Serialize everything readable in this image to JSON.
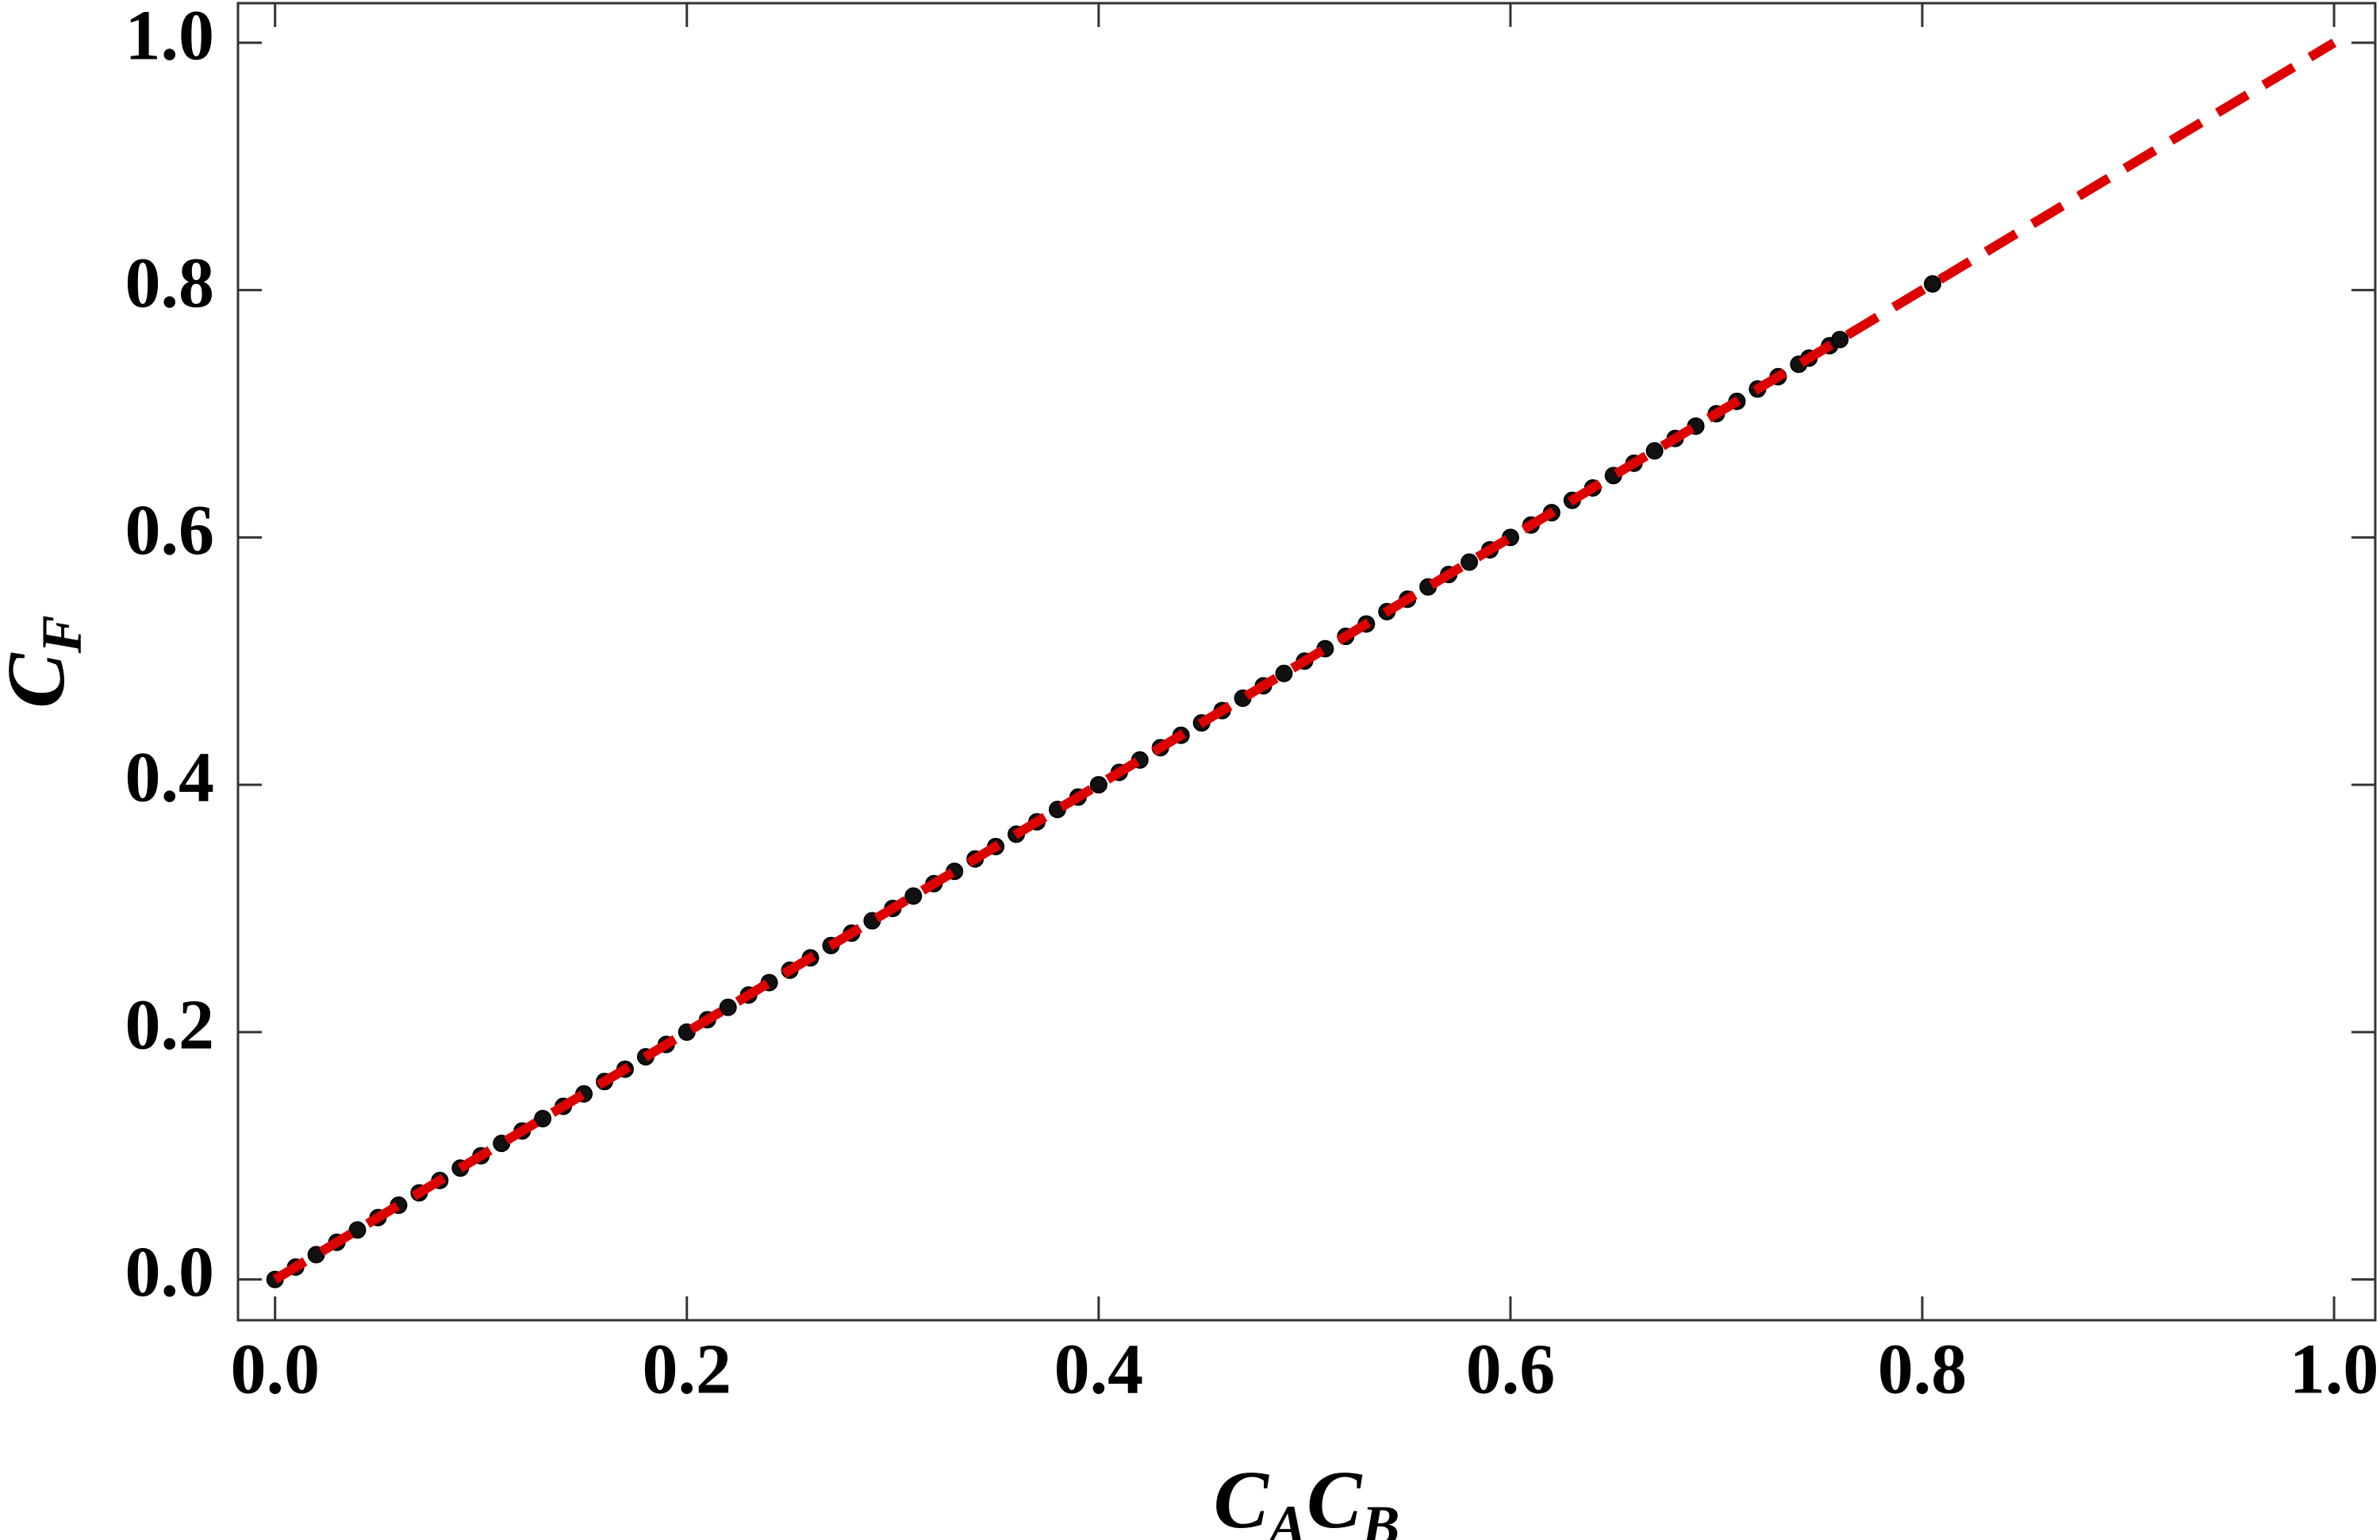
{
  "chart_data": {
    "type": "scatter",
    "xlabel": "CACB",
    "ylabel": "CF",
    "xlim": [
      -0.018,
      1.02
    ],
    "ylim": [
      -0.033,
      1.032
    ],
    "xticks": [
      {
        "value": 0,
        "label": "0.0"
      },
      {
        "value": 0.2,
        "label": "0.2"
      },
      {
        "value": 0.4,
        "label": "0.4"
      },
      {
        "value": 0.6,
        "label": "0.6"
      },
      {
        "value": 0.8,
        "label": "0.8"
      },
      {
        "value": 1,
        "label": "1.0"
      }
    ],
    "yticks": [
      {
        "value": 0,
        "label": "0.0"
      },
      {
        "value": 0.2,
        "label": "0.2"
      },
      {
        "value": 0.4,
        "label": "0.4"
      },
      {
        "value": 0.6,
        "label": "0.6"
      },
      {
        "value": 0.8,
        "label": "0.8"
      },
      {
        "value": 1,
        "label": "1.0"
      }
    ],
    "series": [
      {
        "kind": "points",
        "color": "#111111",
        "x": [
          0,
          0.01,
          0.02,
          0.03,
          0.04,
          0.05,
          0.06,
          0.07,
          0.08,
          0.09,
          0.1,
          0.11,
          0.12,
          0.13,
          0.14,
          0.15,
          0.16,
          0.17,
          0.18,
          0.19,
          0.2,
          0.21,
          0.22,
          0.23,
          0.24,
          0.25,
          0.26,
          0.27,
          0.28,
          0.29,
          0.3,
          0.31,
          0.32,
          0.33,
          0.34,
          0.35,
          0.36,
          0.37,
          0.38,
          0.39,
          0.4,
          0.41,
          0.42,
          0.43,
          0.44,
          0.45,
          0.46,
          0.47,
          0.48,
          0.49,
          0.5,
          0.51,
          0.52,
          0.53,
          0.54,
          0.55,
          0.56,
          0.57,
          0.58,
          0.59,
          0.6,
          0.61,
          0.62,
          0.63,
          0.64,
          0.65,
          0.66,
          0.67,
          0.68,
          0.69,
          0.7,
          0.71,
          0.72,
          0.73,
          0.74,
          0.745,
          0.755,
          0.76,
          0.805
        ],
        "values": [
          0,
          0.01,
          0.02,
          0.03,
          0.04,
          0.05,
          0.06,
          0.07,
          0.08,
          0.09,
          0.1,
          0.11,
          0.12,
          0.13,
          0.14,
          0.15,
          0.16,
          0.17,
          0.18,
          0.19,
          0.2,
          0.21,
          0.22,
          0.23,
          0.24,
          0.25,
          0.26,
          0.27,
          0.28,
          0.29,
          0.3,
          0.31,
          0.32,
          0.33,
          0.34,
          0.35,
          0.36,
          0.37,
          0.38,
          0.39,
          0.4,
          0.41,
          0.42,
          0.43,
          0.44,
          0.45,
          0.46,
          0.47,
          0.48,
          0.49,
          0.5,
          0.51,
          0.52,
          0.53,
          0.54,
          0.55,
          0.56,
          0.57,
          0.58,
          0.59,
          0.6,
          0.61,
          0.62,
          0.63,
          0.64,
          0.65,
          0.66,
          0.67,
          0.68,
          0.69,
          0.7,
          0.71,
          0.72,
          0.73,
          0.74,
          0.745,
          0.755,
          0.76,
          0.805
        ]
      },
      {
        "kind": "dashed-line",
        "color": "#dd0000",
        "x": [
          0,
          1
        ],
        "values": [
          0,
          1
        ]
      }
    ]
  }
}
